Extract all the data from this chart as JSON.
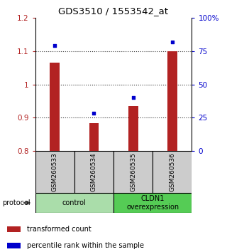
{
  "title": "GDS3510 / 1553542_at",
  "categories": [
    "GSM260533",
    "GSM260534",
    "GSM260535",
    "GSM260536"
  ],
  "bar_values": [
    1.065,
    0.885,
    0.935,
    1.1
  ],
  "scatter_pct": [
    79,
    28.5,
    40,
    82
  ],
  "ylim_left": [
    0.8,
    1.2
  ],
  "ylim_right": [
    0,
    100
  ],
  "yticks_left": [
    0.8,
    0.9,
    1.0,
    1.1,
    1.2
  ],
  "yticks_right": [
    0,
    25,
    50,
    75,
    100
  ],
  "ytick_labels_left": [
    "0.8",
    "0.9",
    "1",
    "1.1",
    "1.2"
  ],
  "ytick_labels_right": [
    "0",
    "25",
    "50",
    "75",
    "100%"
  ],
  "bar_color": "#b22222",
  "scatter_color": "#0000cc",
  "bar_bottom": 0.8,
  "dotted_lines": [
    0.9,
    1.0,
    1.1
  ],
  "sample_box_color": "#cccccc",
  "group1_color": "#aaddaa",
  "group2_color": "#55cc55",
  "legend_items": [
    "transformed count",
    "percentile rank within the sample"
  ],
  "legend_colors": [
    "#b22222",
    "#0000cc"
  ],
  "protocol_label": "protocol"
}
